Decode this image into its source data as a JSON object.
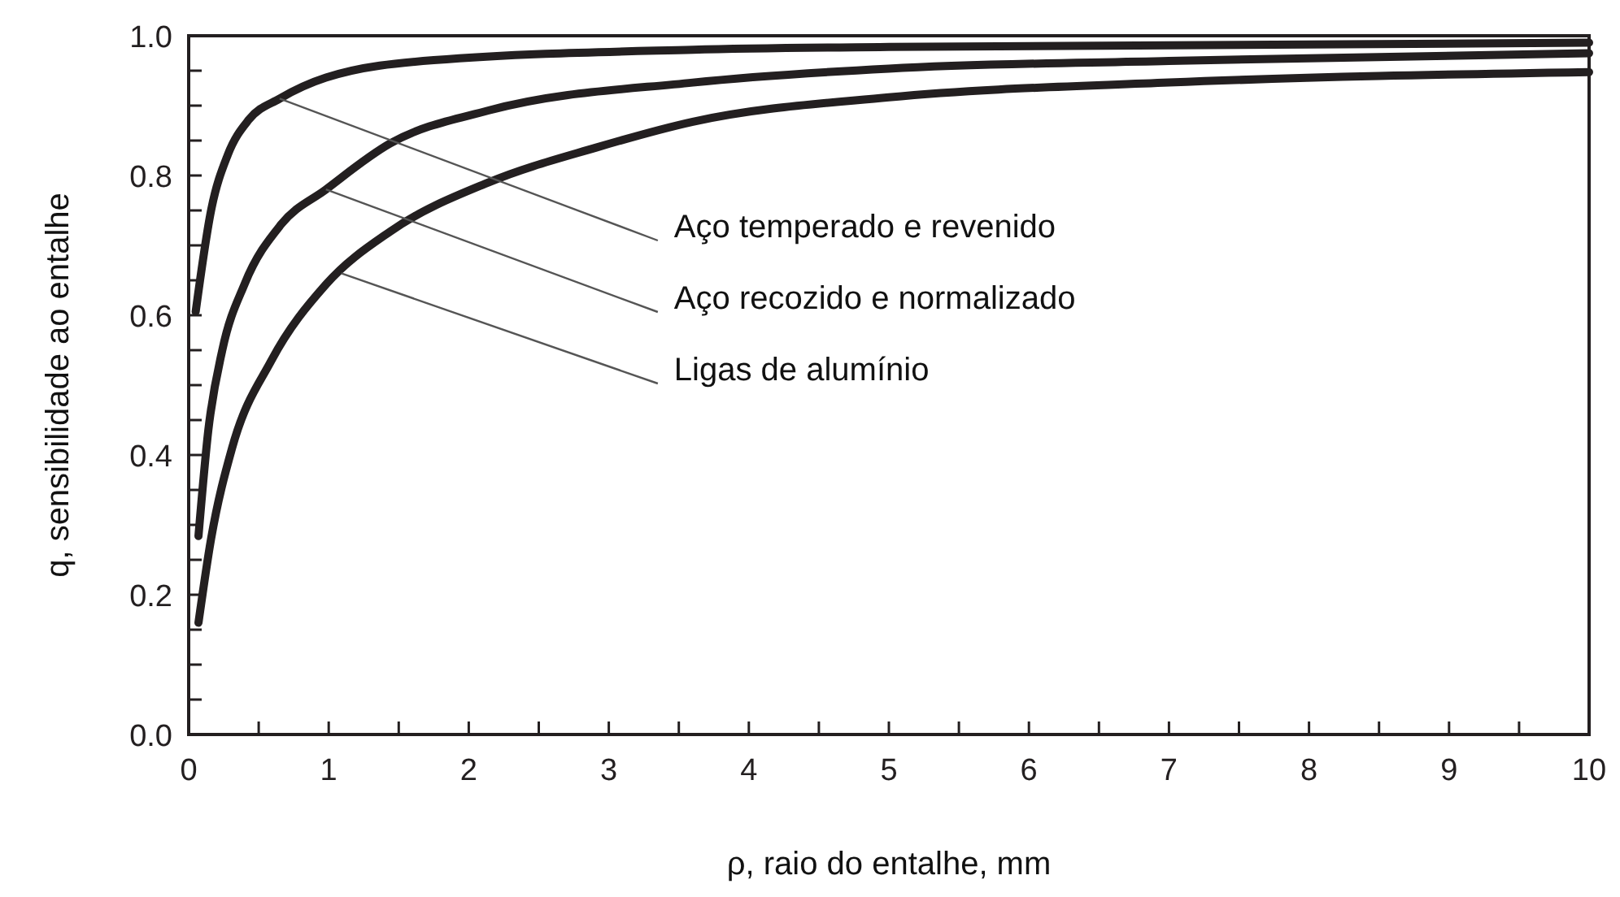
{
  "chart_data": {
    "type": "line",
    "xlabel": "ρ, raio do entalhe, mm",
    "ylabel": "q, sensibilidade ao entalhe",
    "xlim": [
      0,
      10
    ],
    "ylim": [
      0,
      1
    ],
    "xticks": [
      0,
      {
        "value": 0.5,
        "label": null
      },
      1,
      {
        "value": 1.5,
        "label": null
      },
      2,
      {
        "value": 2.5,
        "label": null
      },
      3,
      {
        "value": 3.5,
        "label": null
      },
      4,
      {
        "value": 4.5,
        "label": null
      },
      5,
      {
        "value": 5.5,
        "label": null
      },
      6,
      {
        "value": 6.5,
        "label": null
      },
      7,
      {
        "value": 7.5,
        "label": null
      },
      8,
      {
        "value": 8.5,
        "label": null
      },
      9,
      {
        "value": 9.5,
        "label": null
      },
      10
    ],
    "yticks": [
      {
        "value": 0,
        "label": "0.0"
      },
      {
        "value": 0.05,
        "label": null
      },
      {
        "value": 0.1,
        "label": null
      },
      {
        "value": 0.15,
        "label": null
      },
      {
        "value": 0.2,
        "label": "0.2"
      },
      {
        "value": 0.25,
        "label": null
      },
      {
        "value": 0.3,
        "label": null
      },
      {
        "value": 0.35,
        "label": null
      },
      {
        "value": 0.4,
        "label": "0.4"
      },
      {
        "value": 0.45,
        "label": null
      },
      {
        "value": 0.5,
        "label": null
      },
      {
        "value": 0.55,
        "label": null
      },
      {
        "value": 0.6,
        "label": "0.6"
      },
      {
        "value": 0.65,
        "label": null
      },
      {
        "value": 0.7,
        "label": null
      },
      {
        "value": 0.75,
        "label": null
      },
      {
        "value": 0.8,
        "label": "0.8"
      },
      {
        "value": 0.85,
        "label": null
      },
      {
        "value": 0.9,
        "label": null
      },
      {
        "value": 0.95,
        "label": null
      },
      {
        "value": 1,
        "label": "1.0"
      }
    ],
    "grid": false,
    "marker": "none",
    "annotations": [
      {
        "text": "Aço temperado e revenido",
        "x": 0.65,
        "y": 0.91
      },
      {
        "text": "Aço recozido e normalizado",
        "x": 0.98,
        "y": 0.78
      },
      {
        "text": "Ligas de alumínio",
        "x": 1.09,
        "y": 0.66
      }
    ],
    "line_style": "solid",
    "series": [
      {
        "color": "#231f20",
        "x": [
          0.05,
          0.16,
          0.28,
          0.43,
          0.65,
          0.98,
          1.75,
          3.6,
          5,
          10
        ],
        "values": [
          0.605,
          0.75,
          0.83,
          0.88,
          0.91,
          0.94,
          0.965,
          0.98,
          0.984,
          0.99
        ]
      },
      {
        "color": "#231f20",
        "x": [
          0.07,
          0.14,
          0.24,
          0.4,
          0.66,
          0.98,
          1.44,
          2.14,
          3.6,
          5,
          7,
          10
        ],
        "values": [
          0.284,
          0.435,
          0.55,
          0.645,
          0.73,
          0.78,
          0.846,
          0.893,
          0.933,
          0.953,
          0.964,
          0.975
        ]
      },
      {
        "color": "#231f20",
        "x": [
          0.07,
          0.16,
          0.31,
          0.59,
          0.98,
          1.44,
          2.14,
          2.91,
          3.6,
          5,
          7,
          10
        ],
        "values": [
          0.16,
          0.28,
          0.41,
          0.535,
          0.644,
          0.72,
          0.79,
          0.84,
          0.877,
          0.912,
          0.933,
          0.948
        ]
      }
    ]
  }
}
